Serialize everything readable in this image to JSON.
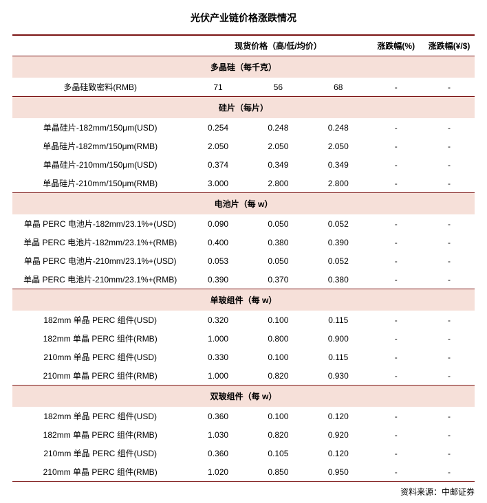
{
  "title": "光伏产业链价格涨跌情况",
  "source_prefix": "资料来源：",
  "source_name": "中邮证券",
  "headers": {
    "price_spot": "现货价格（高/低/均价）",
    "pct": "涨跌幅(%)",
    "abs": "涨跌幅(¥/$)"
  },
  "colors": {
    "rule": "#7a1212",
    "section_bg": "#f6e0d9",
    "text": "#000000",
    "background": "#ffffff"
  },
  "sections": [
    {
      "title": "多晶硅（每千克）",
      "rows": [
        {
          "label": "多晶硅致密料(RMB)",
          "high": "71",
          "low": "56",
          "avg": "68",
          "pct": "-",
          "abs": "-"
        }
      ]
    },
    {
      "title": "硅片（每片）",
      "rows": [
        {
          "label": "单晶硅片-182mm/150μm(USD)",
          "high": "0.254",
          "low": "0.248",
          "avg": "0.248",
          "pct": "-",
          "abs": "-"
        },
        {
          "label": "单晶硅片-182mm/150μm(RMB)",
          "high": "2.050",
          "low": "2.050",
          "avg": "2.050",
          "pct": "-",
          "abs": "-"
        },
        {
          "label": "单晶硅片-210mm/150μm(USD)",
          "high": "0.374",
          "low": "0.349",
          "avg": "0.349",
          "pct": "-",
          "abs": "-"
        },
        {
          "label": "单晶硅片-210mm/150μm(RMB)",
          "high": "3.000",
          "low": "2.800",
          "avg": "2.800",
          "pct": "-",
          "abs": "-"
        }
      ]
    },
    {
      "title": "电池片（每 w）",
      "rows": [
        {
          "label": "单晶 PERC 电池片-182mm/23.1%+(USD)",
          "high": "0.090",
          "low": "0.050",
          "avg": "0.052",
          "pct": "-",
          "abs": "-"
        },
        {
          "label": "单晶 PERC 电池片-182mm/23.1%+(RMB)",
          "high": "0.400",
          "low": "0.380",
          "avg": "0.390",
          "pct": "-",
          "abs": "-"
        },
        {
          "label": "单晶 PERC 电池片-210mm/23.1%+(USD)",
          "high": "0.053",
          "low": "0.050",
          "avg": "0.052",
          "pct": "-",
          "abs": "-"
        },
        {
          "label": "单晶 PERC 电池片-210mm/23.1%+(RMB)",
          "high": "0.390",
          "low": "0.370",
          "avg": "0.380",
          "pct": "-",
          "abs": "-"
        }
      ]
    },
    {
      "title": "单玻组件（每 w）",
      "rows": [
        {
          "label": "182mm 单晶 PERC 组件(USD)",
          "high": "0.320",
          "low": "0.100",
          "avg": "0.115",
          "pct": "-",
          "abs": "-"
        },
        {
          "label": "182mm 单晶 PERC 组件(RMB)",
          "high": "1.000",
          "low": "0.800",
          "avg": "0.900",
          "pct": "-",
          "abs": "-"
        },
        {
          "label": "210mm 单晶 PERC 组件(USD)",
          "high": "0.330",
          "low": "0.100",
          "avg": "0.115",
          "pct": "-",
          "abs": "-"
        },
        {
          "label": "210mm 单晶 PERC 组件(RMB)",
          "high": "1.000",
          "low": "0.820",
          "avg": "0.930",
          "pct": "-",
          "abs": "-"
        }
      ]
    },
    {
      "title": "双玻组件（每 w）",
      "rows": [
        {
          "label": "182mm 单晶 PERC 组件(USD)",
          "high": "0.360",
          "low": "0.100",
          "avg": "0.120",
          "pct": "-",
          "abs": "-"
        },
        {
          "label": "182mm 单晶 PERC 组件(RMB)",
          "high": "1.030",
          "low": "0.820",
          "avg": "0.920",
          "pct": "-",
          "abs": "-"
        },
        {
          "label": "210mm 单晶 PERC 组件(USD)",
          "high": "0.360",
          "low": "0.105",
          "avg": "0.120",
          "pct": "-",
          "abs": "-"
        },
        {
          "label": "210mm 单晶 PERC 组件(RMB)",
          "high": "1.020",
          "low": "0.850",
          "avg": "0.950",
          "pct": "-",
          "abs": "-"
        }
      ]
    }
  ]
}
